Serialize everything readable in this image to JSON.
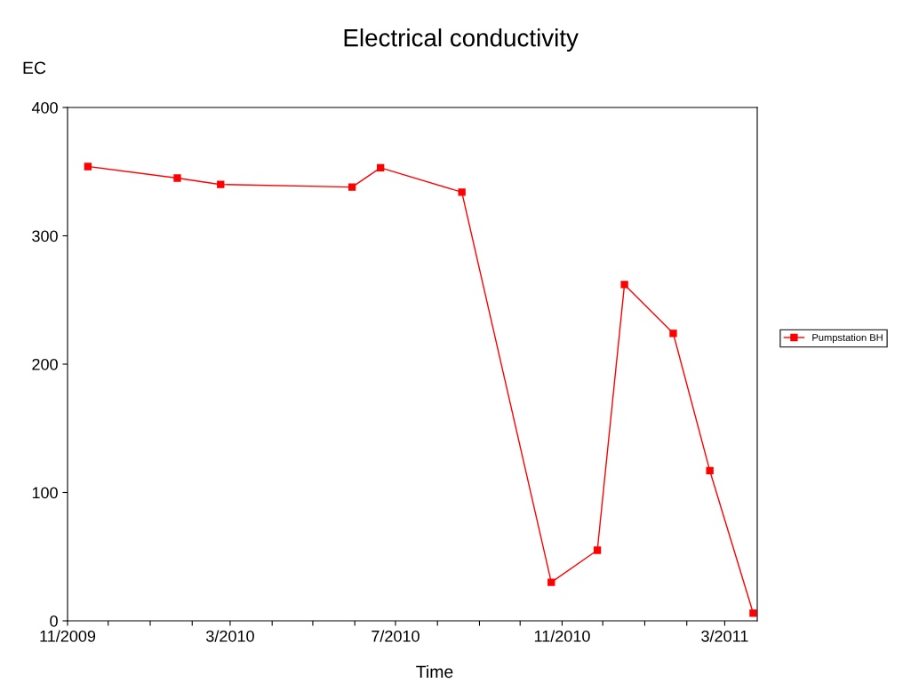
{
  "chart_data": {
    "type": "line",
    "title": "Electrical conductivity",
    "xlabel": "Time",
    "ylabel": "EC",
    "x": [
      "2009-11-16",
      "2010-01-21",
      "2010-02-22",
      "2010-05-30",
      "2010-06-20",
      "2010-08-19",
      "2010-10-24",
      "2010-11-27",
      "2010-12-17",
      "2011-01-22",
      "2011-02-18",
      "2011-03-22"
    ],
    "series": [
      {
        "name": "Pumpstation BH",
        "color": "#ff0000",
        "values": [
          354,
          345,
          340,
          338,
          353,
          334,
          30,
          55,
          262,
          224,
          117,
          6
        ]
      }
    ],
    "xlim": [
      "2009-11-01",
      "2011-03-25"
    ],
    "xticks": [
      {
        "value": "2009-11-01",
        "label": "11/2009"
      },
      {
        "value": "2009-12-01",
        "label": null
      },
      {
        "value": "2010-01-01",
        "label": null
      },
      {
        "value": "2010-02-01",
        "label": null
      },
      {
        "value": "2010-03-01",
        "label": "3/2010"
      },
      {
        "value": "2010-04-01",
        "label": null
      },
      {
        "value": "2010-05-01",
        "label": null
      },
      {
        "value": "2010-06-01",
        "label": null
      },
      {
        "value": "2010-07-01",
        "label": "7/2010"
      },
      {
        "value": "2010-08-01",
        "label": null
      },
      {
        "value": "2010-09-01",
        "label": null
      },
      {
        "value": "2010-10-01",
        "label": null
      },
      {
        "value": "2010-11-01",
        "label": "11/2010"
      },
      {
        "value": "2010-12-01",
        "label": null
      },
      {
        "value": "2011-01-01",
        "label": null
      },
      {
        "value": "2011-02-01",
        "label": null
      },
      {
        "value": "2011-03-01",
        "label": "3/2011"
      }
    ],
    "ylim": [
      0,
      400
    ],
    "yticks": [
      0,
      100,
      200,
      300,
      400
    ],
    "grid": false,
    "legend": "right",
    "marker": "square",
    "line_style": "solid"
  }
}
